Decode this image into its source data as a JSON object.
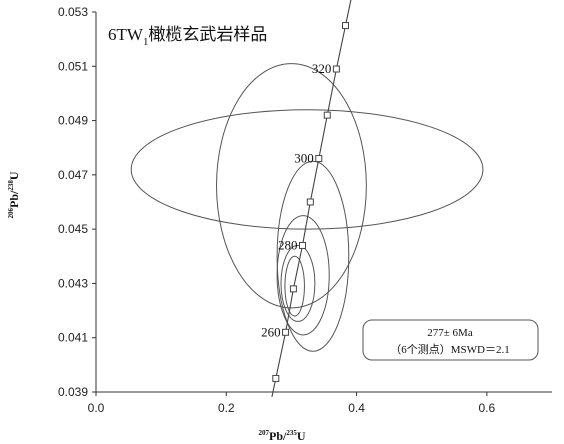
{
  "chart_data": {
    "type": "scatter",
    "chart_kind": "U-Pb concordia diagram",
    "title": {
      "main": "6TW",
      "sub": "1",
      "rest": "橄榄玄武岩样品"
    },
    "xlabel": {
      "sup1": "207",
      "base1": "Pb/",
      "sup2": "235",
      "base2": "U"
    },
    "ylabel": {
      "sup1": "206",
      "base1": "Pb/",
      "sup2": "238",
      "base2": "U"
    },
    "xlim": [
      0.0,
      0.7
    ],
    "ylim": [
      0.039,
      0.053
    ],
    "xticks": [
      0.0,
      0.2,
      0.4,
      0.6
    ],
    "xtick_labels": [
      "0.0",
      "0.2",
      "0.4",
      "0.6"
    ],
    "yticks": [
      0.039,
      0.041,
      0.043,
      0.045,
      0.047,
      0.049,
      0.051,
      0.053
    ],
    "ytick_labels": [
      "0.039",
      "0.041",
      "0.043",
      "0.045",
      "0.047",
      "0.049",
      "0.051",
      "0.053"
    ],
    "grid": false,
    "concordia_markers": [
      {
        "x": 0.276,
        "y": 0.0395
      },
      {
        "x": 0.291,
        "y": 0.0412
      },
      {
        "x": 0.303,
        "y": 0.0428
      },
      {
        "x": 0.317,
        "y": 0.0444
      },
      {
        "x": 0.329,
        "y": 0.046
      },
      {
        "x": 0.342,
        "y": 0.0476
      },
      {
        "x": 0.355,
        "y": 0.0492
      },
      {
        "x": 0.369,
        "y": 0.0509
      },
      {
        "x": 0.383,
        "y": 0.0525
      }
    ],
    "age_labels": [
      {
        "text": "260",
        "x": 0.291,
        "y": 0.0412
      },
      {
        "text": "280",
        "x": 0.317,
        "y": 0.0444
      },
      {
        "text": "300",
        "x": 0.342,
        "y": 0.0476
      },
      {
        "text": "320",
        "x": 0.369,
        "y": 0.0509
      }
    ],
    "error_ellipses": [
      {
        "cx": 0.324,
        "cy": 0.0472,
        "rx": 0.27,
        "ry": 0.0022,
        "angle": 0
      },
      {
        "cx": 0.3,
        "cy": 0.0466,
        "rx": 0.115,
        "ry": 0.0045,
        "angle": 0
      },
      {
        "cx": 0.333,
        "cy": 0.044,
        "rx": 0.055,
        "ry": 0.0035,
        "angle": 0
      },
      {
        "cx": 0.318,
        "cy": 0.0433,
        "rx": 0.04,
        "ry": 0.0022,
        "angle": 0
      },
      {
        "cx": 0.31,
        "cy": 0.043,
        "rx": 0.026,
        "ry": 0.0014,
        "angle": 0
      },
      {
        "cx": 0.305,
        "cy": 0.0429,
        "rx": 0.015,
        "ry": 0.0011,
        "angle": 0
      }
    ],
    "annotation": {
      "line1": "277± 6Ma",
      "line2": "（6个测点）MSWD＝2.1"
    },
    "colors": {
      "lines": "#555555",
      "background": "#ffffff"
    }
  }
}
